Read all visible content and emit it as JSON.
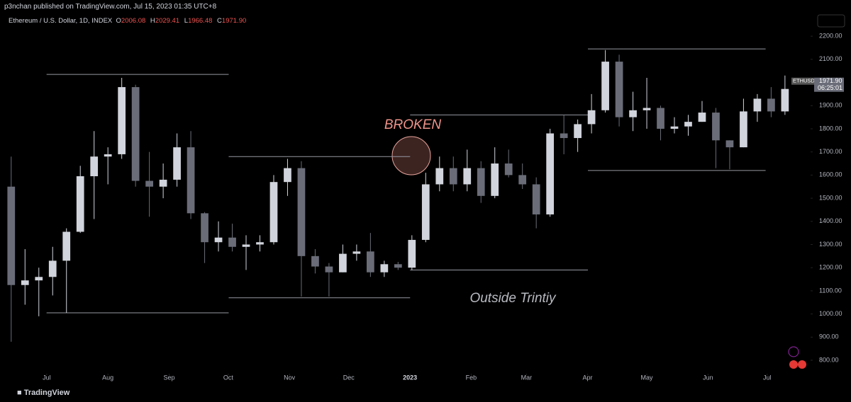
{
  "header": {
    "published": "p3nchan published on TradingView.com, Jul 15, 2023 01:35 UTC+8",
    "symbol_title": "Ethereum / U.S. Dollar, 1D, INDEX",
    "ohlc": [
      {
        "key": "O",
        "value": "2006.08"
      },
      {
        "key": "H",
        "value": "2029.41"
      },
      {
        "key": "L",
        "value": "1966.48"
      },
      {
        "key": "C",
        "value": "1971.90"
      }
    ],
    "ticker": "ETHUSD",
    "countdown": "06:25:01"
  },
  "footer": {
    "brand": "TradingView"
  },
  "chart_data": {
    "type": "candlestick",
    "annotations": [
      "BROKEN",
      "Outside Trintiy"
    ],
    "x": [
      0,
      1,
      2,
      3,
      4,
      5,
      6,
      7,
      8,
      9,
      10,
      11,
      12,
      13,
      14,
      15,
      16,
      17,
      18,
      19,
      20,
      21,
      22,
      23,
      24,
      25,
      26,
      27,
      28,
      29,
      30,
      31,
      32,
      33,
      34,
      35,
      36,
      37,
      38,
      39,
      40,
      41,
      42,
      43,
      44,
      45,
      46,
      47,
      48,
      49,
      50,
      51,
      52,
      53,
      54,
      55,
      56
    ],
    "open": [
      1550,
      1125,
      1145,
      1160,
      1230,
      1355,
      1595,
      1680,
      1690,
      1980,
      1575,
      1550,
      1580,
      1720,
      1435,
      1310,
      1330,
      1290,
      1300,
      1310,
      1570,
      1630,
      1250,
      1205,
      1180,
      1260,
      1270,
      1180,
      1215,
      1200,
      1320,
      1560,
      1630,
      1560,
      1630,
      1510,
      1650,
      1600,
      1560,
      1430,
      1780,
      1760,
      1820,
      1880,
      2090,
      1850,
      1880,
      1890,
      1800,
      1810,
      1830,
      1870,
      1750,
      1720,
      1875,
      1930,
      1875
    ],
    "high": [
      1680,
      1280,
      1200,
      1290,
      1370,
      1640,
      1790,
      1720,
      2020,
      1990,
      1700,
      1650,
      1780,
      1790,
      1440,
      1400,
      1390,
      1340,
      1340,
      1600,
      1670,
      1660,
      1280,
      1220,
      1300,
      1300,
      1350,
      1230,
      1225,
      1340,
      1610,
      1680,
      1680,
      1710,
      1660,
      1720,
      1710,
      1650,
      1590,
      1800,
      1860,
      1840,
      1950,
      2140,
      2120,
      1960,
      2020,
      1900,
      1850,
      1860,
      1920,
      1890,
      1750,
      1930,
      1950,
      1980,
      2030
    ],
    "low": [
      880,
      1040,
      990,
      1080,
      1005,
      1350,
      1410,
      1560,
      1670,
      1550,
      1420,
      1500,
      1550,
      1410,
      1220,
      1270,
      1270,
      1190,
      1270,
      1300,
      1510,
      1075,
      1175,
      1075,
      1180,
      1230,
      1160,
      1160,
      1190,
      1190,
      1310,
      1530,
      1530,
      1530,
      1480,
      1500,
      1590,
      1540,
      1370,
      1420,
      1690,
      1700,
      1780,
      1870,
      1810,
      1790,
      1800,
      1750,
      1780,
      1770,
      1830,
      1630,
      1625,
      1720,
      1830,
      1850,
      1860
    ],
    "close": [
      1125,
      1145,
      1160,
      1230,
      1355,
      1595,
      1680,
      1690,
      1980,
      1575,
      1550,
      1580,
      1720,
      1435,
      1310,
      1330,
      1290,
      1300,
      1310,
      1570,
      1630,
      1250,
      1205,
      1180,
      1260,
      1270,
      1180,
      1215,
      1200,
      1320,
      1560,
      1630,
      1560,
      1630,
      1510,
      1650,
      1600,
      1560,
      1430,
      1780,
      1760,
      1820,
      1880,
      2090,
      1850,
      1880,
      1890,
      1800,
      1810,
      1830,
      1870,
      1750,
      1720,
      1875,
      1930,
      1875,
      1972
    ],
    "up_color": "#d1d4dc",
    "down_color": "#6a6d78",
    "level_color": "#9598a1",
    "levels": [
      {
        "price": 2035,
        "from": 2.56,
        "to": 15.74
      },
      {
        "price": 1005,
        "from": 2.56,
        "to": 15.74
      },
      {
        "price": 1680,
        "from": 15.74,
        "to": 28.87
      },
      {
        "price": 1070,
        "from": 15.74,
        "to": 28.87
      },
      {
        "price": 1860,
        "from": 28.87,
        "to": 41.74
      },
      {
        "price": 1190,
        "from": 28.87,
        "to": 41.74
      },
      {
        "price": 2145,
        "from": 41.74,
        "to": 54.6
      },
      {
        "price": 1620,
        "from": 41.74,
        "to": 54.6
      }
    ],
    "xlim": [
      -0.4,
      57.7
    ],
    "xticks": [
      {
        "value": 2.57,
        "label": "Jul"
      },
      {
        "value": 7.0,
        "label": "Aug"
      },
      {
        "value": 11.43,
        "label": "Sep"
      },
      {
        "value": 15.71,
        "label": "Oct"
      },
      {
        "value": 20.14,
        "label": "Nov"
      },
      {
        "value": 24.43,
        "label": "Dec"
      },
      {
        "value": 28.86,
        "label": "2023"
      },
      {
        "value": 33.29,
        "label": "Feb"
      },
      {
        "value": 37.29,
        "label": "Mar"
      },
      {
        "value": 41.71,
        "label": "Apr"
      },
      {
        "value": 46.0,
        "label": "May"
      },
      {
        "value": 50.43,
        "label": "Jun"
      },
      {
        "value": 54.71,
        "label": "Jul"
      }
    ],
    "ylim": [
      742,
      2234
    ],
    "yticks": [
      {
        "value": 800,
        "label": "800.00"
      },
      {
        "value": 900,
        "label": "900.00"
      },
      {
        "value": 1000,
        "label": "1000.00"
      },
      {
        "value": 1100,
        "label": "1100.00"
      },
      {
        "value": 1200,
        "label": "1200.00"
      },
      {
        "value": 1300,
        "label": "1300.00"
      },
      {
        "value": 1400,
        "label": "1400.00"
      },
      {
        "value": 1500,
        "label": "1500.00"
      },
      {
        "value": 1600,
        "label": "1600.00"
      },
      {
        "value": 1700,
        "label": "1700.00"
      },
      {
        "value": 1800,
        "label": "1800.00"
      },
      {
        "value": 1900,
        "label": "1900.00"
      },
      {
        "value": 2000,
        "label": "2000.00"
      },
      {
        "value": 2100,
        "label": "2100.00"
      },
      {
        "value": 2200,
        "label": "2200.00"
      }
    ]
  }
}
